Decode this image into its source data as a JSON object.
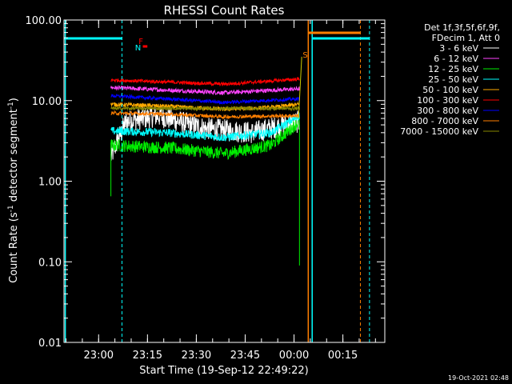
{
  "chart_data": {
    "type": "line",
    "title": "RHESSI Count Rates",
    "xlabel": "Start Time (19-Sep-12 22:49:22)",
    "ylabel_main": "Count Rate (s",
    "ylabel_sup": "-1",
    "ylabel_rest": " detector segment",
    "y_scale": "log",
    "ylim": [
      0.01,
      100
    ],
    "xlim_minutes_from_start": [
      0,
      98.5
    ],
    "y_ticks": [
      {
        "value": 100,
        "label": "100.00"
      },
      {
        "value": 10,
        "label": "10.00"
      },
      {
        "value": 1,
        "label": "1.00"
      },
      {
        "value": 0.1,
        "label": "0.10"
      },
      {
        "value": 0.01,
        "label": "0.01"
      }
    ],
    "x_ticks": [
      {
        "minute": 10.63,
        "label": "23:00"
      },
      {
        "minute": 25.63,
        "label": "23:15"
      },
      {
        "minute": 40.63,
        "label": "23:30"
      },
      {
        "minute": 55.63,
        "label": "23:45"
      },
      {
        "minute": 70.63,
        "label": "00:00"
      },
      {
        "minute": 85.63,
        "label": "00:15"
      }
    ],
    "legend_header": [
      "Det 1f,3f,5f,6f,9f,",
      "FDecim 1, Att 0"
    ],
    "series": [
      {
        "name": "3 - 6 keV",
        "color": "#ffffff",
        "levels": [
          [
            0,
            2.0
          ],
          [
            0.08,
            5.5
          ],
          [
            0.25,
            6.5
          ],
          [
            0.5,
            4.5
          ],
          [
            0.75,
            4.0
          ],
          [
            1,
            5.5
          ]
        ],
        "noise": 0.32
      },
      {
        "name": "6 - 12 keV",
        "color": "#ff44ff",
        "levels": [
          [
            0,
            14.5
          ],
          [
            0.3,
            13.5
          ],
          [
            0.6,
            12.5
          ],
          [
            1,
            14.0
          ]
        ],
        "noise": 0.06
      },
      {
        "name": "12 - 25 keV",
        "color": "#00ee00",
        "levels": [
          [
            0,
            2.8
          ],
          [
            0.3,
            2.6
          ],
          [
            0.6,
            2.2
          ],
          [
            0.85,
            2.8
          ],
          [
            1,
            5.5
          ]
        ],
        "noise": 0.18
      },
      {
        "name": "25 - 50 keV",
        "color": "#00ffff",
        "levels": [
          [
            0,
            4.2
          ],
          [
            0.3,
            4.0
          ],
          [
            0.6,
            3.5
          ],
          [
            0.85,
            4.0
          ],
          [
            1,
            6.5
          ]
        ],
        "noise": 0.12
      },
      {
        "name": "50 - 100 keV",
        "color": "#ffaa00",
        "levels": [
          [
            0,
            9.0
          ],
          [
            0.3,
            8.5
          ],
          [
            0.6,
            7.8
          ],
          [
            0.85,
            8.2
          ],
          [
            1,
            9.0
          ]
        ],
        "noise": 0.06
      },
      {
        "name": "100 - 300 keV",
        "color": "#ff0000",
        "levels": [
          [
            0,
            18.0
          ],
          [
            0.3,
            17.0
          ],
          [
            0.6,
            16.0
          ],
          [
            1,
            18.5
          ]
        ],
        "noise": 0.05
      },
      {
        "name": "300 - 800 keV",
        "color": "#0000ff",
        "levels": [
          [
            0,
            11.5
          ],
          [
            0.3,
            10.5
          ],
          [
            0.6,
            9.5
          ],
          [
            1,
            10.5
          ]
        ],
        "noise": 0.05
      },
      {
        "name": "800 - 7000 keV",
        "color": "#ff7f00",
        "levels": [
          [
            0,
            7.0
          ],
          [
            0.3,
            6.8
          ],
          [
            0.6,
            6.3
          ],
          [
            1,
            6.5
          ]
        ],
        "noise": 0.05
      },
      {
        "name": "7000 - 15000 keV",
        "color": "#888800",
        "levels": [
          [
            0,
            8.0
          ],
          [
            1,
            8.0
          ]
        ],
        "noise": 0.05
      }
    ],
    "data_window_minutes": [
      14.4,
      72.3
    ],
    "annotations": [
      {
        "text": "N",
        "color": "#00ffff",
        "minute": 21.8,
        "y": 63
      },
      {
        "text": "F",
        "color": "#ff0000",
        "minute": 22.9,
        "y": 55
      },
      {
        "text": "S",
        "color": "#ff7f00",
        "minute": 73.3,
        "y": 72
      }
    ]
  },
  "timestamp": "19-Oct-2021 02:48"
}
